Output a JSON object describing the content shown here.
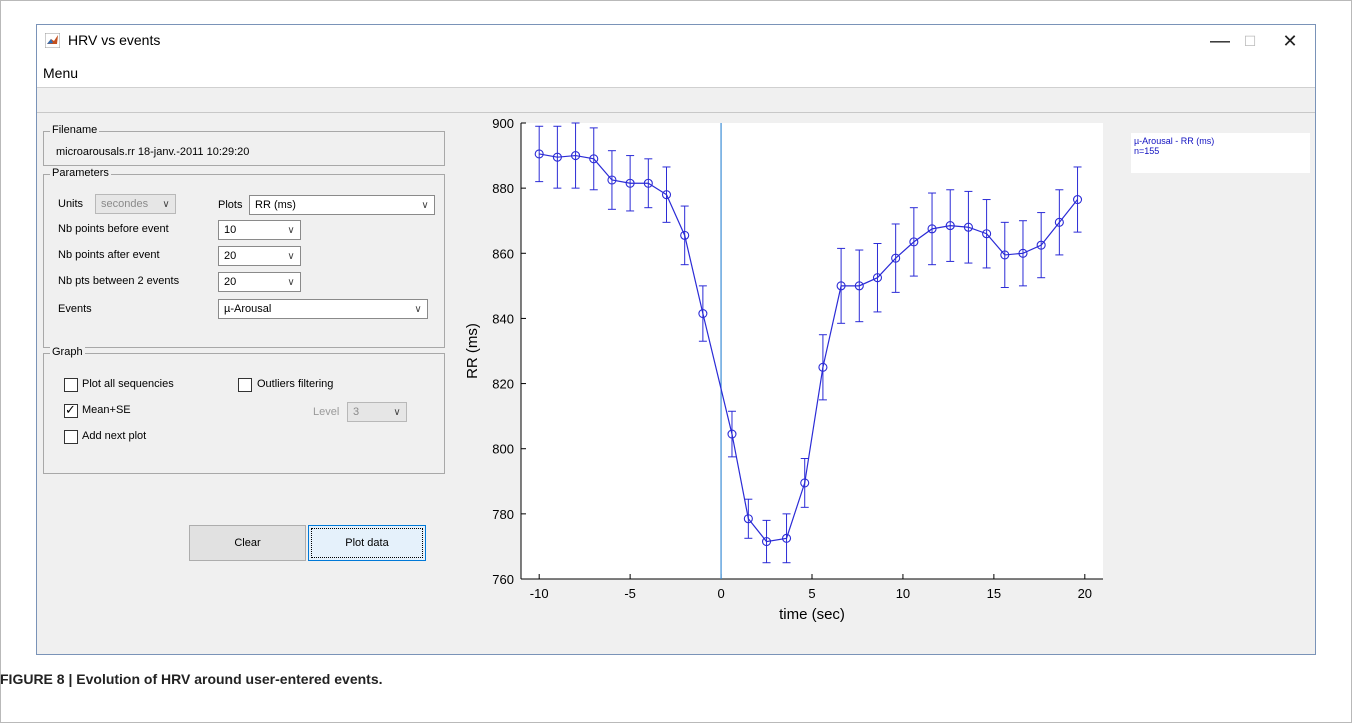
{
  "window": {
    "title": "HRV vs events",
    "menu_label": "Menu",
    "minimize_glyph": "—",
    "maximize_glyph": "☐",
    "close_glyph": "✕"
  },
  "filename_panel": {
    "legend": "Filename",
    "value": "microarousals.rr   18-janv.-2011 10:29:20"
  },
  "parameters": {
    "legend": "Parameters",
    "units_label": "Units",
    "units_value": "secondes",
    "plots_label": "Plots",
    "plots_value": "RR (ms)",
    "nb_before_label": "Nb points before event",
    "nb_before_value": "10",
    "nb_after_label": "Nb points after event",
    "nb_after_value": "20",
    "nb_between_label": "Nb pts between 2 events",
    "nb_between_value": "20",
    "events_label": "Events",
    "events_value": "µ-Arousal",
    "dropdown_glyph": "∨"
  },
  "graph": {
    "legend": "Graph",
    "plot_all_label": "Plot all sequencies",
    "plot_all_checked": false,
    "outliers_label": "Outliers filtering",
    "outliers_checked": false,
    "mean_se_label": "Mean+SE",
    "mean_se_checked": true,
    "add_next_label": "Add next plot",
    "add_next_checked": false,
    "level_label": "Level",
    "level_value": "3",
    "check_glyph": "✓"
  },
  "buttons": {
    "clear_label": "Clear",
    "plot_label": "Plot data"
  },
  "plot_legend": {
    "line1": "µ-Arousal - RR (ms)",
    "line2": "n=155"
  },
  "caption": "FIGURE 8 | Evolution of HRV around user-entered events.",
  "colors": {
    "series": "#2b2bd6",
    "event_line": "#3d8fd6"
  },
  "chart_data": {
    "type": "line",
    "xlabel": "time (sec)",
    "ylabel": "RR (ms)",
    "xlim": [
      -11,
      21
    ],
    "ylim": [
      760,
      900
    ],
    "xticks": [
      -10,
      -5,
      0,
      5,
      10,
      15,
      20
    ],
    "yticks": [
      760,
      780,
      800,
      820,
      840,
      860,
      880,
      900
    ],
    "event_x": 0,
    "grid": false,
    "series": [
      {
        "x": [
          -10,
          -9,
          -8,
          -7,
          -6,
          -5,
          -4,
          -3,
          -2,
          -1,
          0.6,
          1.5,
          2.5,
          3.6,
          4.6,
          5.6,
          6.6,
          7.6,
          8.6,
          9.6,
          10.6,
          11.6,
          12.6,
          13.6,
          14.6,
          15.6,
          16.6,
          17.6,
          18.6,
          19.6
        ],
        "y": [
          890.5,
          889.5,
          890,
          889,
          882.5,
          881.5,
          881.5,
          878,
          865.5,
          841.5,
          804.5,
          778.5,
          771.5,
          772.5,
          789.5,
          825,
          850,
          850,
          852.5,
          858.5,
          863.5,
          867.5,
          868.5,
          868,
          866,
          859.5,
          860,
          862.5,
          869.5,
          876.5
        ],
        "err": [
          8.5,
          9.5,
          10,
          9.5,
          9,
          8.5,
          7.5,
          8.5,
          9,
          8.5,
          7,
          6,
          6.5,
          7.5,
          7.5,
          10,
          11.5,
          11,
          10.5,
          10.5,
          10.5,
          11,
          11,
          11,
          10.5,
          10,
          10,
          10,
          10,
          10
        ]
      }
    ]
  }
}
